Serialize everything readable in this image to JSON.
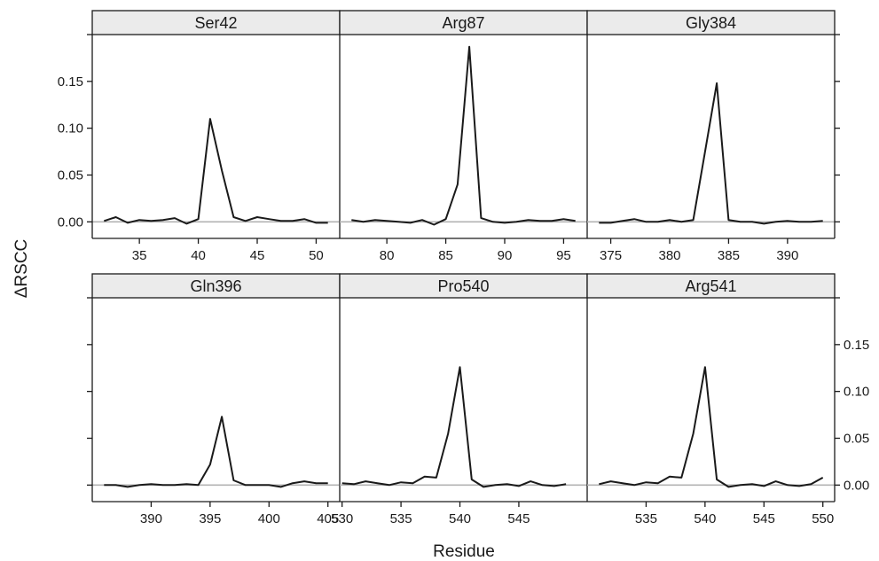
{
  "chart_data": {
    "type": "line",
    "xlabel": "Residue",
    "ylabel": "ΔRSCC",
    "ylim": [
      -0.012,
      0.2
    ],
    "y_ticks": [
      0.0,
      0.05,
      0.1,
      0.15
    ],
    "y_tick_labels": [
      "0.00",
      "0.05",
      "0.10",
      "0.15"
    ],
    "line_color": "#1a1a1a",
    "zero_line_color": "#b3b3b3",
    "strip_color": "#ebebeb",
    "panels": [
      {
        "title": "Ser42",
        "xlim": [
          31,
          52
        ],
        "x_ticks": [
          35,
          40,
          45,
          50
        ],
        "x": [
          32,
          33,
          34,
          35,
          36,
          37,
          38,
          39,
          40,
          41,
          42,
          43,
          44,
          45,
          46,
          47,
          48,
          49,
          50,
          51
        ],
        "y": [
          0.001,
          0.005,
          -0.001,
          0.002,
          0.001,
          0.002,
          0.004,
          -0.002,
          0.003,
          0.11,
          0.055,
          0.005,
          0.001,
          0.005,
          0.003,
          0.001,
          0.001,
          0.003,
          -0.001,
          -0.001
        ]
      },
      {
        "title": "Arg87",
        "xlim": [
          76,
          97
        ],
        "x_ticks": [
          80,
          85,
          90,
          95
        ],
        "x": [
          77,
          78,
          79,
          80,
          81,
          82,
          83,
          84,
          85,
          86,
          87,
          88,
          89,
          90,
          91,
          92,
          93,
          94,
          95,
          96
        ],
        "y": [
          0.002,
          0.0,
          0.002,
          0.001,
          0.0,
          -0.001,
          0.002,
          -0.003,
          0.003,
          0.04,
          0.187,
          0.004,
          0.0,
          -0.001,
          0.0,
          0.002,
          0.001,
          0.001,
          0.003,
          0.001
        ]
      },
      {
        "title": "Gly384",
        "xlim": [
          373,
          394
        ],
        "x_ticks": [
          375,
          380,
          385,
          390
        ],
        "x": [
          374,
          375,
          376,
          377,
          378,
          379,
          380,
          381,
          382,
          383,
          384,
          385,
          386,
          387,
          388,
          389,
          390,
          391,
          392,
          393
        ],
        "y": [
          -0.001,
          -0.001,
          0.001,
          0.003,
          0.0,
          0.0,
          0.002,
          0.0,
          0.002,
          0.075,
          0.148,
          0.002,
          0.0,
          0.0,
          -0.002,
          0.0,
          0.001,
          0.0,
          0.0,
          0.001
        ]
      },
      {
        "title": "Gln396",
        "xlim": [
          385,
          406
        ],
        "x_ticks": [
          390,
          395,
          400,
          405
        ],
        "x": [
          386,
          387,
          388,
          389,
          390,
          391,
          392,
          393,
          394,
          395,
          396,
          397,
          398,
          399,
          400,
          401,
          402,
          403,
          404,
          405
        ],
        "y": [
          0.0,
          0.0,
          -0.002,
          0.0,
          0.001,
          0.0,
          0.0,
          0.001,
          0.0,
          0.022,
          0.073,
          0.005,
          0.0,
          0.0,
          0.0,
          -0.002,
          0.002,
          0.004,
          0.002,
          0.002
        ]
      },
      {
        "title": "Pro540",
        "xlim": [
          529.8,
          550.8
        ],
        "x_ticks": [
          530,
          535,
          540,
          545
        ],
        "x": [
          530,
          531,
          532,
          533,
          534,
          535,
          536,
          537,
          538,
          539,
          540,
          541,
          542,
          543,
          544,
          545,
          546,
          547,
          548,
          549
        ],
        "y": [
          0.002,
          0.001,
          0.004,
          0.002,
          0.0,
          0.003,
          0.002,
          0.009,
          0.008,
          0.055,
          0.126,
          0.006,
          -0.002,
          0.0,
          0.001,
          -0.001,
          0.004,
          0.0,
          -0.001,
          0.001
        ]
      },
      {
        "title": "Arg541",
        "xlim": [
          530,
          551
        ],
        "x_ticks": [
          535,
          540,
          545,
          550
        ],
        "x": [
          531,
          532,
          533,
          534,
          535,
          536,
          537,
          538,
          539,
          540,
          541,
          542,
          543,
          544,
          545,
          546,
          547,
          548,
          549,
          550
        ],
        "y": [
          0.001,
          0.004,
          0.002,
          0.0,
          0.003,
          0.002,
          0.009,
          0.008,
          0.055,
          0.126,
          0.006,
          -0.002,
          0.0,
          0.001,
          -0.001,
          0.004,
          0.0,
          -0.001,
          0.001,
          0.008
        ]
      }
    ]
  }
}
